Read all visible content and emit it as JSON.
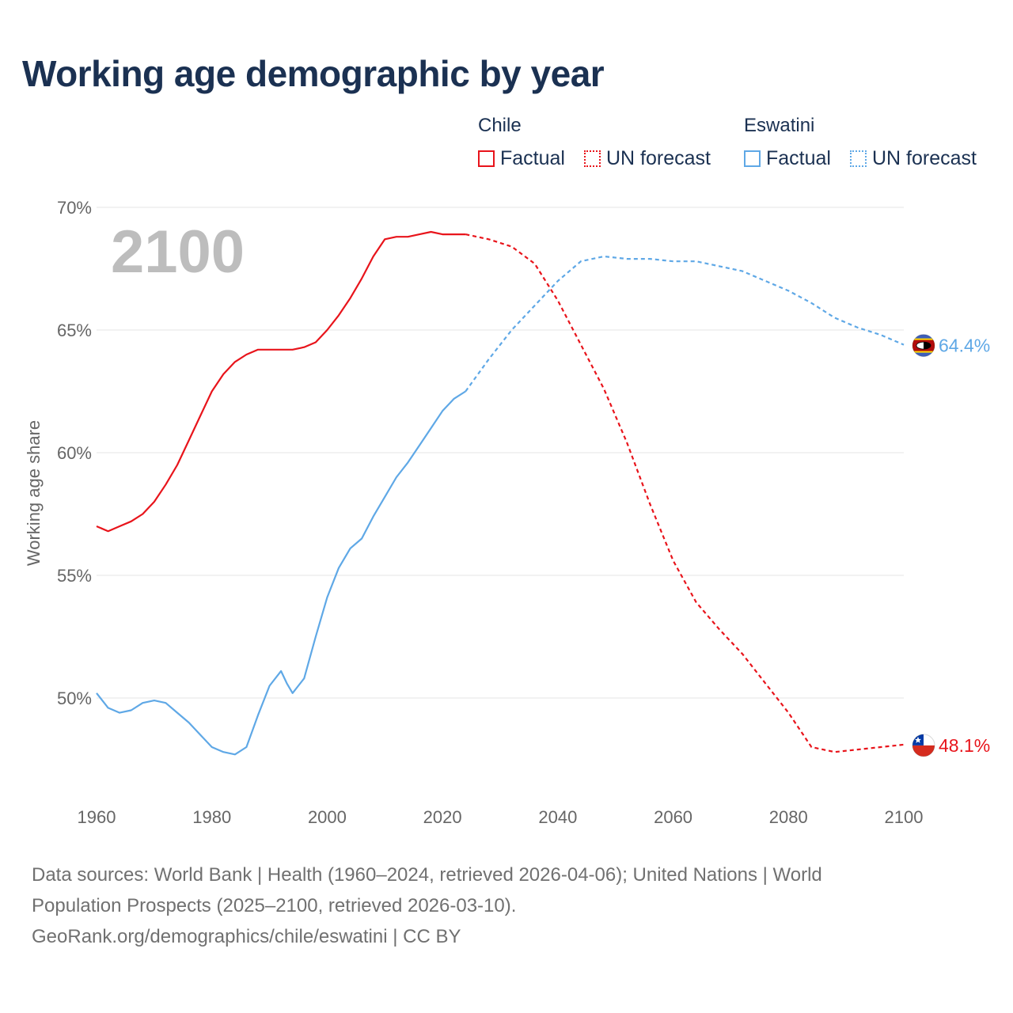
{
  "title": "Working age demographic by year",
  "legend": {
    "chile": {
      "name": "Chile",
      "factual_label": "Factual",
      "forecast_label": "UN forecast"
    },
    "eswatini": {
      "name": "Eswatini",
      "factual_label": "Factual",
      "forecast_label": "UN forecast"
    }
  },
  "colors": {
    "chile": "#e8141b",
    "eswatini": "#5fa8e6",
    "grid": "#e6e6e6",
    "title": "#1b3152"
  },
  "current_year": "2100",
  "footer": {
    "line1": "Data sources: World Bank | Health (1960–2024, retrieved 2026-04-06); United Nations | World",
    "line2": "Population Prospects (2025–2100, retrieved 2026-03-10).",
    "line3": "GeoRank.org/demographics/chile/eswatini | CC BY"
  },
  "chart_data": {
    "type": "line",
    "title": "Working age demographic by year",
    "xlabel": "",
    "ylabel": "Working age share",
    "xlim": [
      1960,
      2100
    ],
    "ylim": [
      46,
      70
    ],
    "x_ticks": [
      1960,
      1980,
      2000,
      2020,
      2040,
      2060,
      2080,
      2100
    ],
    "y_ticks": [
      50,
      55,
      60,
      65,
      70
    ],
    "y_tick_labels": [
      "50%",
      "55%",
      "60%",
      "65%",
      "70%"
    ],
    "x_tick_labels": [
      "1960",
      "1980",
      "2000",
      "2020",
      "2040",
      "2060",
      "2080",
      "2100"
    ],
    "grid": true,
    "series": [
      {
        "name": "Chile",
        "factual_x": [
          1960,
          1962,
          1964,
          1966,
          1968,
          1970,
          1972,
          1974,
          1976,
          1978,
          1980,
          1982,
          1984,
          1986,
          1988,
          1990,
          1992,
          1994,
          1996,
          1998,
          2000,
          2002,
          2004,
          2006,
          2008,
          2010,
          2012,
          2014,
          2016,
          2018,
          2020,
          2022,
          2024
        ],
        "factual_y": [
          57.0,
          56.8,
          57.0,
          57.2,
          57.5,
          58.0,
          58.7,
          59.5,
          60.5,
          61.5,
          62.5,
          63.2,
          63.7,
          64.0,
          64.2,
          64.2,
          64.2,
          64.2,
          64.3,
          64.5,
          65.0,
          65.6,
          66.3,
          67.1,
          68.0,
          68.7,
          68.8,
          68.8,
          68.9,
          69.0,
          68.9,
          68.9,
          68.9
        ],
        "forecast_x": [
          2024,
          2028,
          2032,
          2036,
          2040,
          2044,
          2048,
          2052,
          2056,
          2060,
          2064,
          2068,
          2072,
          2076,
          2080,
          2084,
          2088,
          2092,
          2096,
          2100
        ],
        "forecast_y": [
          68.9,
          68.7,
          68.4,
          67.7,
          66.2,
          64.4,
          62.6,
          60.4,
          57.9,
          55.6,
          53.9,
          52.8,
          51.8,
          50.6,
          49.4,
          48.0,
          47.8,
          47.9,
          48.0,
          48.1
        ],
        "end_value": 48.1,
        "end_label": "48.1%",
        "flag": "chile-flag-icon"
      },
      {
        "name": "Eswatini",
        "factual_x": [
          1960,
          1962,
          1964,
          1966,
          1968,
          1970,
          1972,
          1974,
          1976,
          1978,
          1980,
          1982,
          1984,
          1986,
          1988,
          1990,
          1992,
          1993,
          1994,
          1995,
          1996,
          1998,
          2000,
          2002,
          2004,
          2006,
          2008,
          2010,
          2012,
          2014,
          2016,
          2018,
          2020,
          2022,
          2024
        ],
        "factual_y": [
          50.2,
          49.6,
          49.4,
          49.5,
          49.8,
          49.9,
          49.8,
          49.4,
          49.0,
          48.5,
          48.0,
          47.8,
          47.7,
          48.0,
          49.3,
          50.5,
          51.1,
          50.6,
          50.2,
          50.5,
          50.8,
          52.5,
          54.1,
          55.3,
          56.1,
          56.5,
          57.4,
          58.2,
          59.0,
          59.6,
          60.3,
          61.0,
          61.7,
          62.2,
          62.5
        ],
        "forecast_x": [
          2024,
          2028,
          2032,
          2036,
          2040,
          2044,
          2048,
          2052,
          2056,
          2060,
          2064,
          2068,
          2072,
          2076,
          2080,
          2084,
          2088,
          2092,
          2096,
          2100
        ],
        "forecast_y": [
          62.5,
          63.8,
          65.0,
          66.0,
          67.0,
          67.8,
          68.0,
          67.9,
          67.9,
          67.8,
          67.8,
          67.6,
          67.4,
          67.0,
          66.6,
          66.1,
          65.5,
          65.1,
          64.8,
          64.4
        ],
        "end_value": 64.4,
        "end_label": "64.4%",
        "flag": "eswatini-flag-icon"
      }
    ]
  }
}
